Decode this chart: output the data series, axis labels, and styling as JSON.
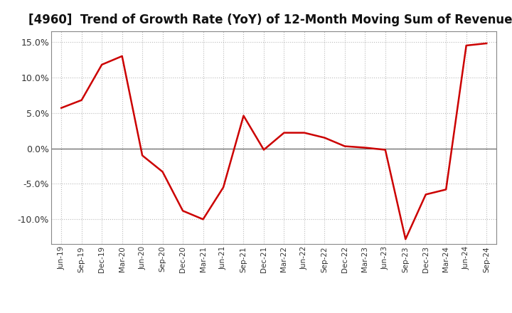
{
  "title": "[4960]  Trend of Growth Rate (YoY) of 12-Month Moving Sum of Revenues",
  "title_fontsize": 12,
  "line_color": "#CC0000",
  "line_width": 1.8,
  "background_color": "#FFFFFF",
  "plot_bg_color": "#FFFFFF",
  "ylim": [
    -0.135,
    0.165
  ],
  "yticks": [
    -0.1,
    -0.05,
    0.0,
    0.05,
    0.1,
    0.15
  ],
  "ytick_labels": [
    "-10.0%",
    "-5.0%",
    "0.0%",
    "5.0%",
    "10.0%",
    "15.0%"
  ],
  "grid_color": "#BBBBBB",
  "x_labels": [
    "Jun-19",
    "Sep-19",
    "Dec-19",
    "Mar-20",
    "Jun-20",
    "Sep-20",
    "Dec-20",
    "Mar-21",
    "Jun-21",
    "Sep-21",
    "Dec-21",
    "Mar-22",
    "Jun-22",
    "Sep-22",
    "Dec-22",
    "Mar-23",
    "Jun-23",
    "Sep-23",
    "Dec-23",
    "Mar-24",
    "Jun-24",
    "Sep-24"
  ],
  "y_values": [
    0.057,
    0.068,
    0.118,
    0.13,
    -0.01,
    -0.033,
    -0.088,
    -0.1,
    -0.055,
    0.046,
    -0.002,
    0.022,
    0.022,
    0.015,
    0.003,
    0.001,
    -0.002,
    -0.128,
    -0.065,
    -0.058,
    0.145,
    0.148
  ]
}
